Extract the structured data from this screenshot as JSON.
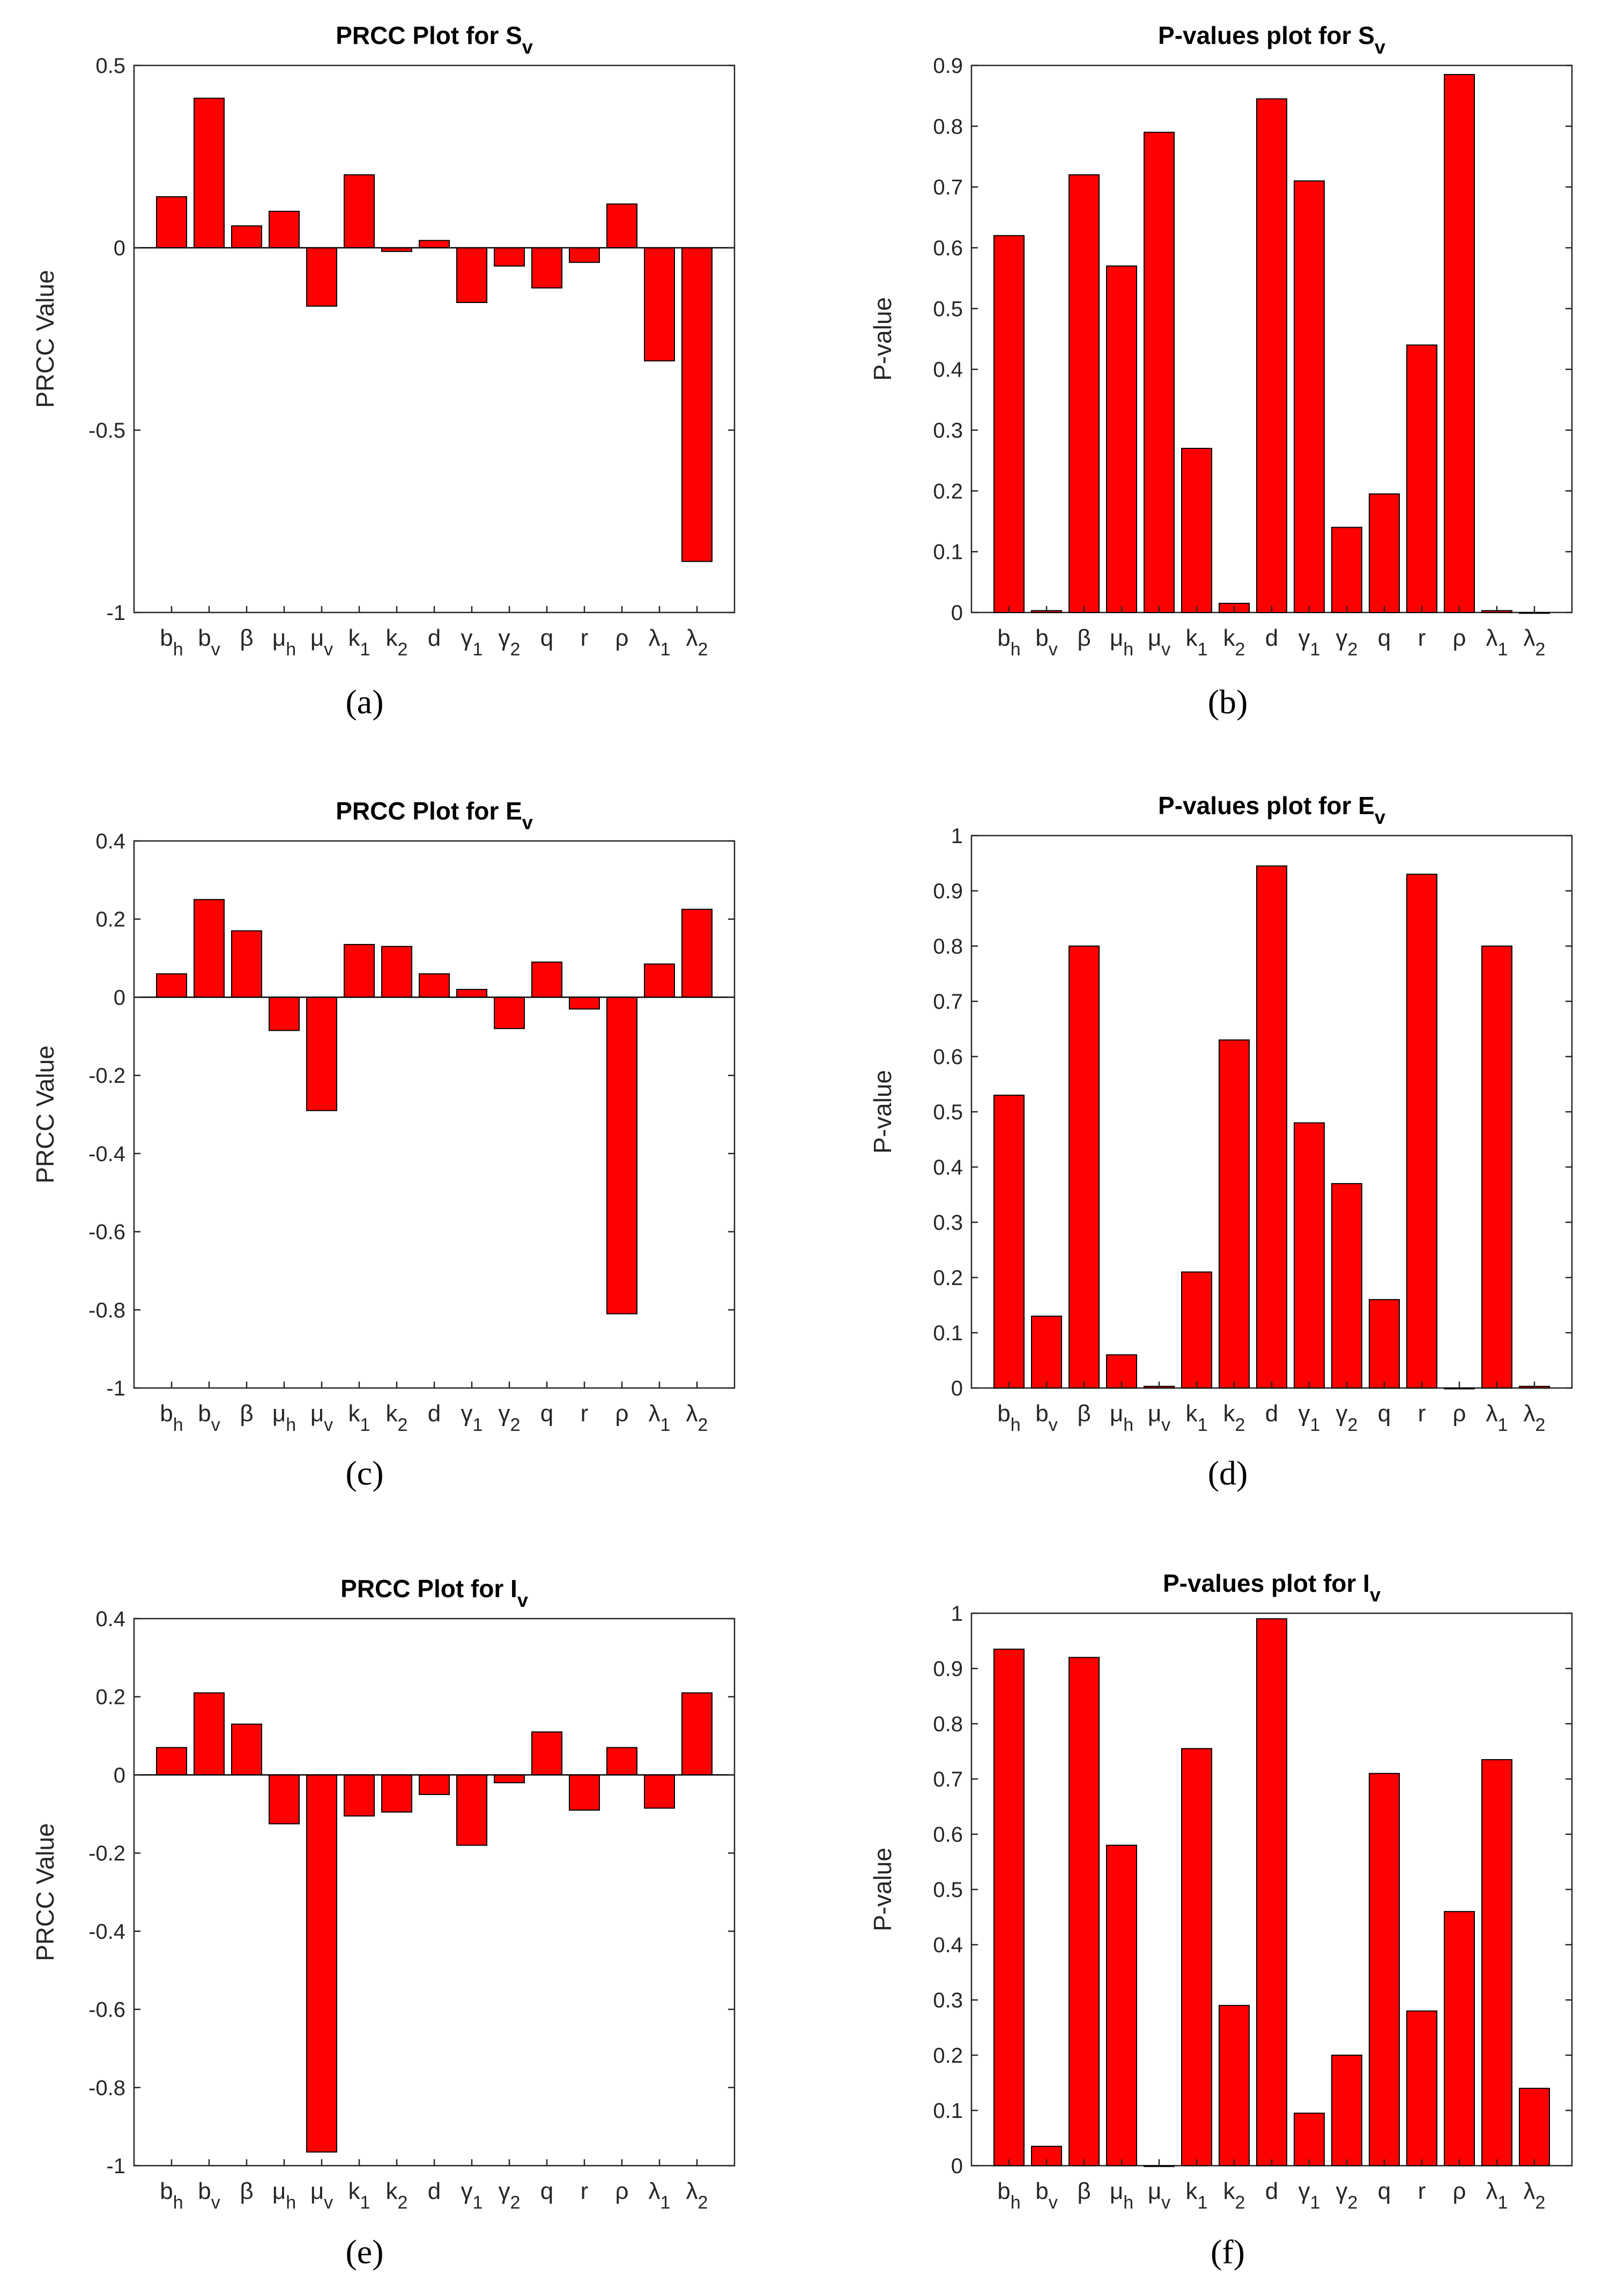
{
  "figure": {
    "captions": [
      "(a)",
      "(b)",
      "(c)",
      "(d)",
      "(e)",
      "(f)"
    ]
  },
  "colors": {
    "bar": "#ff0000",
    "stroke": "#000000",
    "text": "#262626"
  },
  "chart_data": [
    {
      "type": "bar",
      "title": {
        "main": "PRCC Plot for S",
        "sub": "v"
      },
      "ylabel": "PRCC Value",
      "xlabel": "",
      "ylim": [
        -1,
        0.5
      ],
      "yticks": [
        -1,
        -0.5,
        0,
        0.5
      ],
      "ytick_labels": [
        "-1",
        "-0.5",
        "0",
        "0.5"
      ],
      "categories": [
        {
          "base": "b",
          "sub": "h"
        },
        {
          "base": "b",
          "sub": "v"
        },
        {
          "base": "β",
          "sub": ""
        },
        {
          "base": "μ",
          "sub": "h"
        },
        {
          "base": "μ",
          "sub": "v"
        },
        {
          "base": "k",
          "sub": "1"
        },
        {
          "base": "k",
          "sub": "2"
        },
        {
          "base": "d",
          "sub": ""
        },
        {
          "base": "γ",
          "sub": "1"
        },
        {
          "base": "γ",
          "sub": "2"
        },
        {
          "base": "q",
          "sub": ""
        },
        {
          "base": "r",
          "sub": ""
        },
        {
          "base": "ρ",
          "sub": ""
        },
        {
          "base": "λ",
          "sub": "1"
        },
        {
          "base": "λ",
          "sub": "2"
        }
      ],
      "values": [
        0.14,
        0.41,
        0.06,
        0.1,
        -0.16,
        0.2,
        -0.01,
        0.02,
        -0.15,
        -0.05,
        -0.11,
        -0.04,
        0.12,
        -0.31,
        -0.86
      ]
    },
    {
      "type": "bar",
      "title": {
        "main": "P-values plot for S",
        "sub": "v"
      },
      "ylabel": "P-value",
      "xlabel": "",
      "ylim": [
        0,
        0.9
      ],
      "yticks": [
        0,
        0.1,
        0.2,
        0.3,
        0.4,
        0.5,
        0.6,
        0.7,
        0.8,
        0.9
      ],
      "ytick_labels": [
        "0",
        "0.1",
        "0.2",
        "0.3",
        "0.4",
        "0.5",
        "0.6",
        "0.7",
        "0.8",
        "0.9"
      ],
      "categories": [
        {
          "base": "b",
          "sub": "h"
        },
        {
          "base": "b",
          "sub": "v"
        },
        {
          "base": "β",
          "sub": ""
        },
        {
          "base": "μ",
          "sub": "h"
        },
        {
          "base": "μ",
          "sub": "v"
        },
        {
          "base": "k",
          "sub": "1"
        },
        {
          "base": "k",
          "sub": "2"
        },
        {
          "base": "d",
          "sub": ""
        },
        {
          "base": "γ",
          "sub": "1"
        },
        {
          "base": "γ",
          "sub": "2"
        },
        {
          "base": "q",
          "sub": ""
        },
        {
          "base": "r",
          "sub": ""
        },
        {
          "base": "ρ",
          "sub": ""
        },
        {
          "base": "λ",
          "sub": "1"
        },
        {
          "base": "λ",
          "sub": "2"
        }
      ],
      "values": [
        0.62,
        0.003,
        0.72,
        0.57,
        0.79,
        0.27,
        0.015,
        0.845,
        0.71,
        0.14,
        0.195,
        0.44,
        0.885,
        0.003,
        0.0
      ]
    },
    {
      "type": "bar",
      "title": {
        "main": "PRCC Plot for E",
        "sub": "v"
      },
      "ylabel": "PRCC Value",
      "xlabel": "",
      "ylim": [
        -1,
        0.4
      ],
      "yticks": [
        -1,
        -0.8,
        -0.6,
        -0.4,
        -0.2,
        0,
        0.2,
        0.4
      ],
      "ytick_labels": [
        "-1",
        "-0.8",
        "-0.6",
        "-0.4",
        "-0.2",
        "0",
        "0.2",
        "0.4"
      ],
      "categories": [
        {
          "base": "b",
          "sub": "h"
        },
        {
          "base": "b",
          "sub": "v"
        },
        {
          "base": "β",
          "sub": ""
        },
        {
          "base": "μ",
          "sub": "h"
        },
        {
          "base": "μ",
          "sub": "v"
        },
        {
          "base": "k",
          "sub": "1"
        },
        {
          "base": "k",
          "sub": "2"
        },
        {
          "base": "d",
          "sub": ""
        },
        {
          "base": "γ",
          "sub": "1"
        },
        {
          "base": "γ",
          "sub": "2"
        },
        {
          "base": "q",
          "sub": ""
        },
        {
          "base": "r",
          "sub": ""
        },
        {
          "base": "ρ",
          "sub": ""
        },
        {
          "base": "λ",
          "sub": "1"
        },
        {
          "base": "λ",
          "sub": "2"
        }
      ],
      "values": [
        0.06,
        0.25,
        0.17,
        -0.085,
        -0.29,
        0.135,
        0.13,
        0.06,
        0.02,
        -0.08,
        0.09,
        -0.03,
        -0.81,
        0.085,
        0.225
      ]
    },
    {
      "type": "bar",
      "title": {
        "main": "P-values plot for E",
        "sub": "v"
      },
      "ylabel": "P-value",
      "xlabel": "",
      "ylim": [
        0,
        1
      ],
      "yticks": [
        0,
        0.1,
        0.2,
        0.3,
        0.4,
        0.5,
        0.6,
        0.7,
        0.8,
        0.9,
        1
      ],
      "ytick_labels": [
        "0",
        "0.1",
        "0.2",
        "0.3",
        "0.4",
        "0.5",
        "0.6",
        "0.7",
        "0.8",
        "0.9",
        "1"
      ],
      "categories": [
        {
          "base": "b",
          "sub": "h"
        },
        {
          "base": "b",
          "sub": "v"
        },
        {
          "base": "β",
          "sub": ""
        },
        {
          "base": "μ",
          "sub": "h"
        },
        {
          "base": "μ",
          "sub": "v"
        },
        {
          "base": "k",
          "sub": "1"
        },
        {
          "base": "k",
          "sub": "2"
        },
        {
          "base": "d",
          "sub": ""
        },
        {
          "base": "γ",
          "sub": "1"
        },
        {
          "base": "γ",
          "sub": "2"
        },
        {
          "base": "q",
          "sub": ""
        },
        {
          "base": "r",
          "sub": ""
        },
        {
          "base": "ρ",
          "sub": ""
        },
        {
          "base": "λ",
          "sub": "1"
        },
        {
          "base": "λ",
          "sub": "2"
        }
      ],
      "values": [
        0.53,
        0.13,
        0.8,
        0.06,
        0.003,
        0.21,
        0.63,
        0.945,
        0.48,
        0.37,
        0.16,
        0.93,
        0.0,
        0.8,
        0.003
      ]
    },
    {
      "type": "bar",
      "title": {
        "main": "PRCC Plot for I",
        "sub": "v"
      },
      "ylabel": "PRCC Value",
      "xlabel": "",
      "ylim": [
        -1,
        0.4
      ],
      "yticks": [
        -1,
        -0.8,
        -0.6,
        -0.4,
        -0.2,
        0,
        0.2,
        0.4
      ],
      "ytick_labels": [
        "-1",
        "-0.8",
        "-0.6",
        "-0.4",
        "-0.2",
        "0",
        "0.2",
        "0.4"
      ],
      "categories": [
        {
          "base": "b",
          "sub": "h"
        },
        {
          "base": "b",
          "sub": "v"
        },
        {
          "base": "β",
          "sub": ""
        },
        {
          "base": "μ",
          "sub": "h"
        },
        {
          "base": "μ",
          "sub": "v"
        },
        {
          "base": "k",
          "sub": "1"
        },
        {
          "base": "k",
          "sub": "2"
        },
        {
          "base": "d",
          "sub": ""
        },
        {
          "base": "γ",
          "sub": "1"
        },
        {
          "base": "γ",
          "sub": "2"
        },
        {
          "base": "q",
          "sub": ""
        },
        {
          "base": "r",
          "sub": ""
        },
        {
          "base": "ρ",
          "sub": ""
        },
        {
          "base": "λ",
          "sub": "1"
        },
        {
          "base": "λ",
          "sub": "2"
        }
      ],
      "values": [
        0.07,
        0.21,
        0.13,
        -0.125,
        -0.965,
        -0.105,
        -0.095,
        -0.05,
        -0.18,
        -0.02,
        0.11,
        -0.09,
        0.07,
        -0.085,
        0.21
      ]
    },
    {
      "type": "bar",
      "title": {
        "main": "P-values plot for I",
        "sub": "v"
      },
      "ylabel": "P-value",
      "xlabel": "",
      "ylim": [
        0,
        1
      ],
      "yticks": [
        0,
        0.1,
        0.2,
        0.3,
        0.4,
        0.5,
        0.6,
        0.7,
        0.8,
        0.9,
        1
      ],
      "ytick_labels": [
        "0",
        "0.1",
        "0.2",
        "0.3",
        "0.4",
        "0.5",
        "0.6",
        "0.7",
        "0.8",
        "0.9",
        "1"
      ],
      "categories": [
        {
          "base": "b",
          "sub": "h"
        },
        {
          "base": "b",
          "sub": "v"
        },
        {
          "base": "β",
          "sub": ""
        },
        {
          "base": "μ",
          "sub": "h"
        },
        {
          "base": "μ",
          "sub": "v"
        },
        {
          "base": "k",
          "sub": "1"
        },
        {
          "base": "k",
          "sub": "2"
        },
        {
          "base": "d",
          "sub": ""
        },
        {
          "base": "γ",
          "sub": "1"
        },
        {
          "base": "γ",
          "sub": "2"
        },
        {
          "base": "q",
          "sub": ""
        },
        {
          "base": "r",
          "sub": ""
        },
        {
          "base": "ρ",
          "sub": ""
        },
        {
          "base": "λ",
          "sub": "1"
        },
        {
          "base": "λ",
          "sub": "2"
        }
      ],
      "values": [
        0.935,
        0.035,
        0.92,
        0.58,
        0.0,
        0.755,
        0.29,
        0.99,
        0.095,
        0.2,
        0.71,
        0.28,
        0.46,
        0.735,
        0.14
      ]
    }
  ]
}
